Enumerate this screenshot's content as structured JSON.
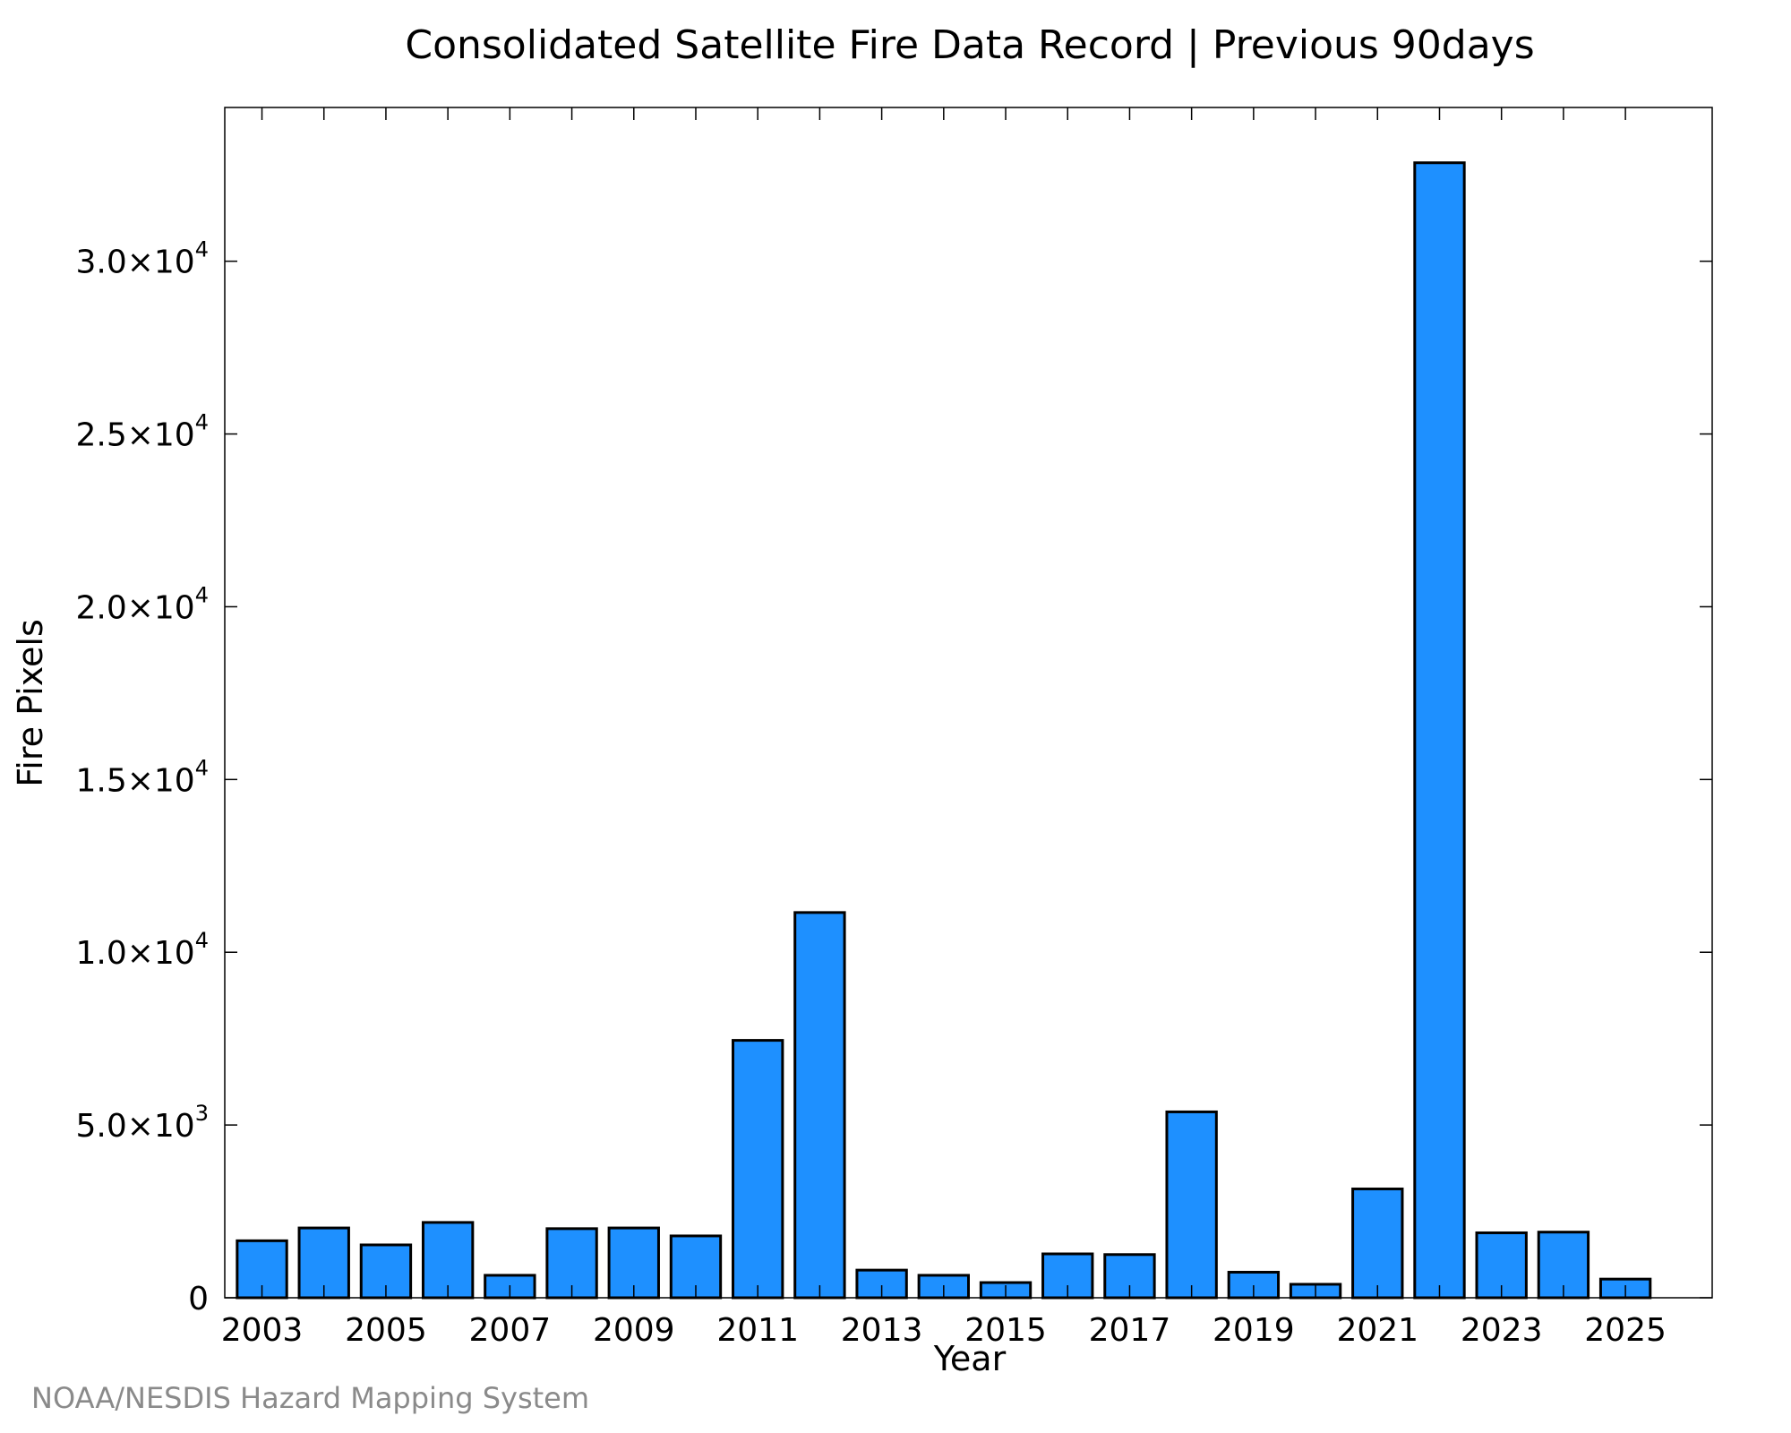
{
  "chart_data": {
    "type": "bar",
    "title": "Consolidated Satellite Fire Data Record | Previous 90days",
    "xlabel": "Year",
    "ylabel": "Fire Pixels",
    "categories": [
      2003,
      2004,
      2005,
      2006,
      2007,
      2008,
      2009,
      2010,
      2011,
      2012,
      2013,
      2014,
      2015,
      2016,
      2017,
      2018,
      2019,
      2020,
      2021,
      2022,
      2023,
      2024,
      2025
    ],
    "values": [
      1650,
      2020,
      1530,
      2180,
      650,
      2000,
      2020,
      1790,
      7450,
      11150,
      800,
      650,
      440,
      1270,
      1250,
      5380,
      740,
      390,
      3150,
      32850,
      1880,
      1900,
      540
    ],
    "xlim": [
      2002.4,
      2026.4
    ],
    "ylim": [
      0,
      34450
    ],
    "x_ticks": [
      2003,
      2005,
      2007,
      2009,
      2011,
      2013,
      2015,
      2017,
      2019,
      2021,
      2023,
      2025
    ],
    "x_tick_labels": [
      "2003",
      "2005",
      "2007",
      "2009",
      "2011",
      "2013",
      "2015",
      "2017",
      "2019",
      "2021",
      "2023",
      "2025"
    ],
    "x_minor_ticks": [
      2004,
      2006,
      2008,
      2010,
      2012,
      2014,
      2016,
      2018,
      2020,
      2022,
      2024
    ],
    "y_ticks": [
      0,
      5000,
      10000,
      15000,
      20000,
      25000,
      30000
    ],
    "y_tick_labels": [
      {
        "mantissa": "0",
        "exponent": ""
      },
      {
        "mantissa": "5.0×10",
        "exponent": "3"
      },
      {
        "mantissa": "1.0×10",
        "exponent": "4"
      },
      {
        "mantissa": "1.5×10",
        "exponent": "4"
      },
      {
        "mantissa": "2.0×10",
        "exponent": "4"
      },
      {
        "mantissa": "2.5×10",
        "exponent": "4"
      },
      {
        "mantissa": "3.0×10",
        "exponent": "4"
      }
    ],
    "grid": false,
    "legend": "none",
    "bar_color": "#1E90FF",
    "bar_edge_color": "#000000"
  },
  "credit": "NOAA/NESDIS Hazard Mapping System"
}
